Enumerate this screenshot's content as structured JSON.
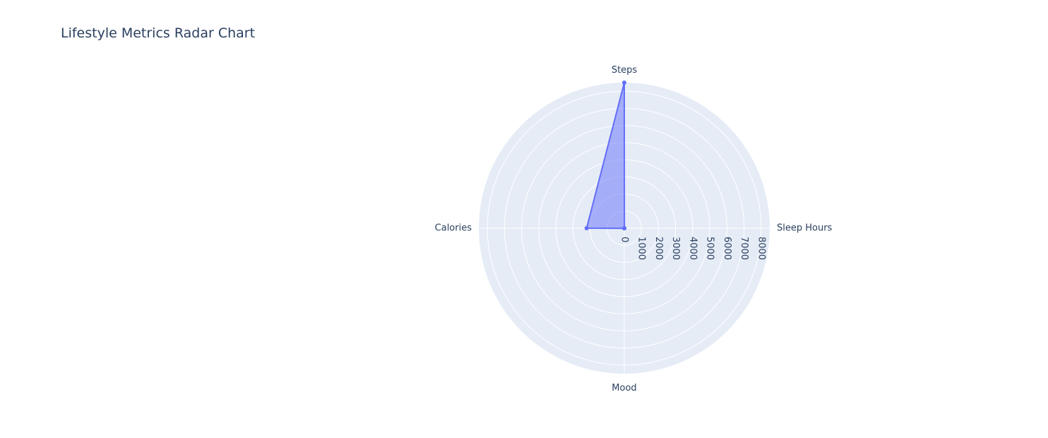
{
  "chart_data": {
    "type": "radar",
    "title": "Lifestyle Metrics Radar Chart",
    "categories": [
      "Steps",
      "Sleep Hours",
      "Mood",
      "Calories"
    ],
    "series": [
      {
        "values": [
          8500,
          7,
          8,
          2200
        ]
      }
    ],
    "radial_range": [
      0,
      8500
    ],
    "radial_ticks": [
      0,
      1000,
      2000,
      3000,
      4000,
      5000,
      6000,
      7000,
      8000
    ],
    "grid": true,
    "legend": "none",
    "colors": {
      "plot_bg": "#e5ecf6",
      "grid": "#ffffff",
      "line": "#636efa",
      "fill": "rgba(99,110,250,0.5)",
      "text": "#2a3f5f"
    }
  }
}
